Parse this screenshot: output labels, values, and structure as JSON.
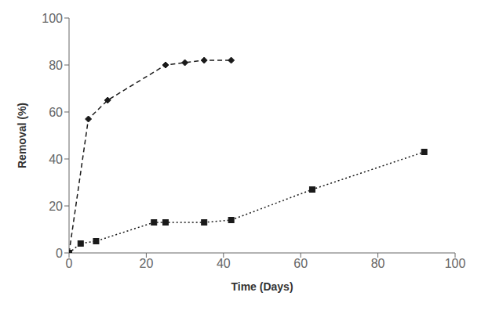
{
  "chart_data": {
    "type": "line",
    "x_label": "Time (Days)",
    "y_label": "Removal (%)",
    "xlim": [
      0,
      100
    ],
    "ylim": [
      0,
      100
    ],
    "xticks": [
      0,
      20,
      40,
      60,
      80,
      100
    ],
    "yticks": [
      0,
      20,
      40,
      60,
      80,
      100
    ],
    "grid": false,
    "series": [
      {
        "color": "#1a1a1a",
        "marker": "diamond",
        "line_style": "dashed",
        "x": [
          0,
          5,
          10,
          25,
          30,
          35,
          42
        ],
        "values": [
          0,
          57,
          65,
          80,
          81,
          82,
          82
        ]
      },
      {
        "color": "#1a1a1a",
        "marker": "square",
        "line_style": "dotted",
        "x": [
          0,
          3,
          7,
          22,
          25,
          35,
          42,
          63,
          92
        ],
        "values": [
          0,
          4,
          5,
          13,
          13,
          13,
          14,
          27,
          43
        ]
      }
    ]
  }
}
